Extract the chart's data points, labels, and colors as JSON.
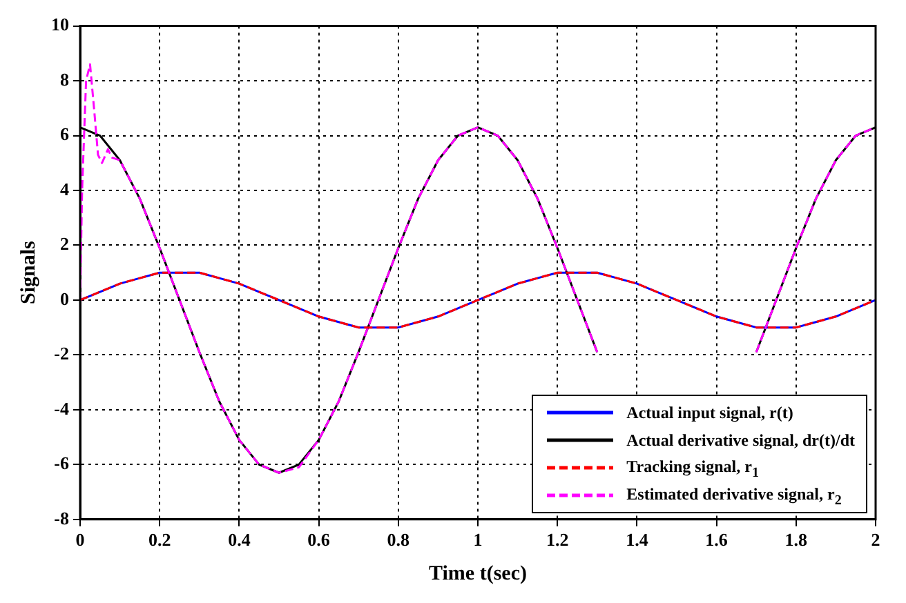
{
  "chart_data": {
    "type": "line",
    "xlabel": "Time t(sec)",
    "ylabel": "Signals",
    "xlim": [
      0,
      2
    ],
    "xticks": [
      0,
      0.2,
      0.4,
      0.6,
      0.8,
      1,
      1.2,
      1.4,
      1.6,
      1.8,
      2
    ],
    "ylim": [
      -8,
      10
    ],
    "yticks": [
      -8,
      -6,
      -4,
      -2,
      0,
      2,
      4,
      6,
      8,
      10
    ],
    "grid": true,
    "legend": "bottom right",
    "marker": "none",
    "x": [
      0,
      0.05,
      0.1,
      0.15,
      0.2,
      0.25,
      0.3,
      0.35,
      0.4,
      0.45,
      0.5,
      0.55,
      0.6,
      0.65,
      0.7,
      0.75,
      0.8,
      0.85,
      0.9,
      0.95,
      1,
      1.05,
      1.1,
      1.15,
      1.2,
      1.25,
      1.3,
      1.35,
      1.4,
      1.45,
      1.5,
      1.55,
      1.6,
      1.65,
      1.7,
      1.75,
      1.8,
      1.85,
      1.9,
      1.95,
      2
    ],
    "series": [
      {
        "name": "Actual input signal, r(t)",
        "color": "#0000ff",
        "line_style": "solid",
        "values": [
          0,
          0.3,
          0.6,
          0.8,
          1,
          1,
          1,
          0.8,
          0.6,
          0.3,
          0,
          -0.3,
          -0.6,
          -0.8,
          -1,
          -1,
          -1,
          -0.8,
          -0.6,
          -0.3,
          0,
          0.3,
          0.6,
          0.8,
          1,
          1,
          1,
          0.8,
          0.6,
          0.3,
          0,
          -0.3,
          -0.6,
          -0.8,
          -1,
          -1,
          -1,
          -0.8,
          -0.6,
          -0.3,
          0
        ]
      },
      {
        "name": "Actual derivative signal, dr(t)/dt",
        "color": "#000000",
        "line_style": "solid",
        "values": [
          6.3,
          6,
          5.1,
          3.7,
          1.9,
          0,
          -1.9,
          -3.7,
          -5.1,
          -6,
          -6.3,
          -6,
          -5.1,
          -3.7,
          -1.9,
          0,
          1.9,
          3.7,
          5.1,
          6,
          6.3,
          6,
          5.1,
          3.7,
          1.9,
          0,
          -1.9,
          null,
          null,
          null,
          null,
          null,
          null,
          null,
          -1.9,
          0,
          1.9,
          3.7,
          5.1,
          6,
          6.3
        ]
      },
      {
        "name": "Tracking signal, r$_{1}$",
        "color": "#ff0000",
        "line_style": "dashed",
        "values": [
          0,
          0.3,
          0.6,
          0.8,
          1,
          1,
          1,
          0.8,
          0.6,
          0.3,
          0,
          -0.3,
          -0.6,
          -0.8,
          -1,
          -1,
          -1,
          -0.8,
          -0.6,
          -0.3,
          0,
          0.3,
          0.6,
          0.8,
          1,
          1,
          1,
          0.8,
          0.6,
          0.3,
          0,
          -0.3,
          -0.6,
          -0.8,
          -1,
          -1,
          -1,
          -0.8,
          -0.6,
          -0.3,
          0
        ]
      },
      {
        "name": "Estimated derivative signal, r$_{2}$",
        "color": "#ff00ff",
        "line_style": "dashed",
        "x": [
          0,
          0.005,
          0.015,
          0.025,
          0.035,
          0.045,
          0.055,
          0.07,
          0.08,
          0.1,
          0.15,
          0.2,
          0.25,
          0.3,
          0.35,
          0.4,
          0.45,
          0.5,
          0.55,
          0.6,
          0.65,
          0.7,
          0.75,
          0.8,
          0.85,
          0.9,
          0.95,
          1,
          1.05,
          1.1,
          1.15,
          1.2,
          1.25,
          1.3,
          1.35,
          1.4,
          1.45,
          1.5,
          1.55,
          1.6,
          1.65,
          1.7,
          1.75,
          1.8,
          1.85,
          1.9,
          1.95,
          2
        ],
        "values": [
          0,
          4,
          8,
          8.6,
          7,
          5.3,
          5,
          5.5,
          5.2,
          5.1,
          3.7,
          1.9,
          0,
          -1.9,
          -3.7,
          -5.1,
          -6,
          -6.3,
          -6.1,
          -5.1,
          -3.7,
          -1.9,
          0,
          1.9,
          3.7,
          5.1,
          6,
          6.3,
          6,
          5.1,
          3.7,
          1.9,
          0,
          -1.9,
          null,
          null,
          null,
          null,
          null,
          null,
          null,
          -1.9,
          0,
          1.9,
          3.7,
          5.1,
          6,
          6.3
        ]
      }
    ]
  }
}
